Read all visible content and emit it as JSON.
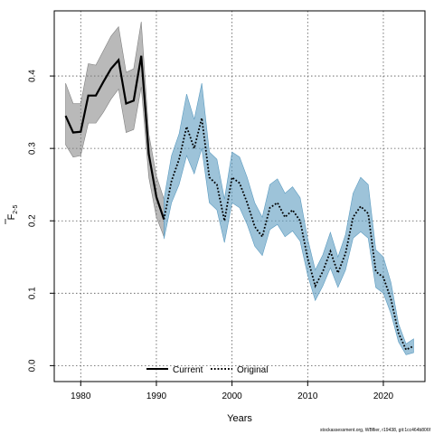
{
  "chart_data": {
    "type": "line",
    "title": "",
    "xlabel": "Years",
    "ylabel_main": "F",
    "ylabel_sub": "2-5",
    "xlim": [
      1976.5,
      2025.5
    ],
    "ylim": [
      -0.022,
      0.49
    ],
    "x_ticks": [
      1980,
      1990,
      2000,
      2010,
      2020
    ],
    "y_ticks": [
      0.0,
      0.1,
      0.2,
      0.3,
      0.4
    ],
    "y_tick_labels": [
      "0.0",
      "0.1",
      "0.2",
      "0.3",
      "0.4"
    ],
    "grid": true,
    "legend_position": "bottom-center",
    "series": [
      {
        "name": "Current",
        "color": "#000000",
        "band_color": "#808080",
        "line_style": "solid",
        "points": [
          [
            1978,
            0.345,
            0.305,
            0.39
          ],
          [
            1979,
            0.322,
            0.288,
            0.362
          ],
          [
            1980,
            0.323,
            0.29,
            0.362
          ],
          [
            1981,
            0.373,
            0.335,
            0.417
          ],
          [
            1982,
            0.373,
            0.335,
            0.415
          ],
          [
            1983,
            0.392,
            0.35,
            0.435
          ],
          [
            1984,
            0.41,
            0.368,
            0.455
          ],
          [
            1985,
            0.422,
            0.382,
            0.468
          ],
          [
            1986,
            0.362,
            0.322,
            0.405
          ],
          [
            1987,
            0.366,
            0.326,
            0.41
          ],
          [
            1988,
            0.428,
            0.385,
            0.475
          ],
          [
            1989,
            0.292,
            0.26,
            0.32
          ],
          [
            1990,
            0.233,
            0.205,
            0.262
          ],
          [
            1991,
            0.202,
            0.178,
            0.23
          ]
        ]
      },
      {
        "name": "Original",
        "color": "#000000",
        "band_color": "#5b9bc0",
        "line_style": "dotted",
        "points": [
          [
            1991,
            0.202,
            0.175,
            0.23
          ],
          [
            1992,
            0.255,
            0.225,
            0.29
          ],
          [
            1993,
            0.285,
            0.25,
            0.32
          ],
          [
            1994,
            0.33,
            0.29,
            0.375
          ],
          [
            1995,
            0.3,
            0.265,
            0.34
          ],
          [
            1996,
            0.342,
            0.3,
            0.39
          ],
          [
            1997,
            0.26,
            0.225,
            0.295
          ],
          [
            1998,
            0.25,
            0.215,
            0.285
          ],
          [
            1999,
            0.2,
            0.17,
            0.23
          ],
          [
            2000,
            0.26,
            0.225,
            0.295
          ],
          [
            2001,
            0.252,
            0.218,
            0.288
          ],
          [
            2002,
            0.225,
            0.195,
            0.26
          ],
          [
            2003,
            0.192,
            0.165,
            0.225
          ],
          [
            2004,
            0.178,
            0.152,
            0.205
          ],
          [
            2005,
            0.218,
            0.188,
            0.25
          ],
          [
            2006,
            0.225,
            0.195,
            0.258
          ],
          [
            2007,
            0.205,
            0.178,
            0.238
          ],
          [
            2008,
            0.215,
            0.186,
            0.247
          ],
          [
            2009,
            0.2,
            0.172,
            0.232
          ],
          [
            2010,
            0.148,
            0.125,
            0.175
          ],
          [
            2011,
            0.11,
            0.09,
            0.132
          ],
          [
            2012,
            0.13,
            0.11,
            0.153
          ],
          [
            2013,
            0.158,
            0.135,
            0.184
          ],
          [
            2014,
            0.128,
            0.108,
            0.15
          ],
          [
            2015,
            0.155,
            0.132,
            0.181
          ],
          [
            2016,
            0.205,
            0.176,
            0.238
          ],
          [
            2017,
            0.22,
            0.185,
            0.26
          ],
          [
            2018,
            0.21,
            0.176,
            0.25
          ],
          [
            2019,
            0.13,
            0.108,
            0.16
          ],
          [
            2020,
            0.122,
            0.1,
            0.15
          ],
          [
            2021,
            0.092,
            0.072,
            0.115
          ],
          [
            2022,
            0.045,
            0.033,
            0.058
          ],
          [
            2023,
            0.022,
            0.015,
            0.03
          ],
          [
            2024,
            0.027,
            0.018,
            0.037
          ]
        ]
      }
    ]
  },
  "footer": "stockassessment.org, WBflier, r19438, git:1cc464b806f"
}
